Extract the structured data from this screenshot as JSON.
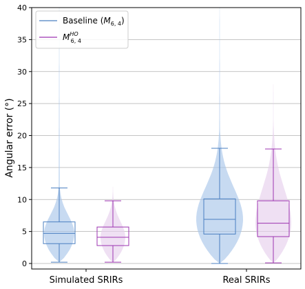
{
  "chart_data": {
    "type": "box-violin",
    "categories": [
      "Simulated SRIRs",
      "Real SRIRs"
    ],
    "ylabel": "Angular error (°)",
    "ylim": [
      0,
      40
    ],
    "yticks": [
      0,
      5,
      10,
      15,
      20,
      25,
      30,
      35,
      40
    ],
    "grid": "horizontal",
    "legend_position": "top-left",
    "series": [
      {
        "legend_main": "Baseline (",
        "legend_math": "M",
        "legend_sub": "6, 4",
        "legend_end": ")",
        "color": "#4a7fc1",
        "fill": "#a9c6ea",
        "boxes": [
          {
            "whisker_low": 0.2,
            "q1": 3.1,
            "median": 4.7,
            "q3": 6.5,
            "whisker_high": 11.8,
            "max": 40
          },
          {
            "whisker_low": 0.0,
            "q1": 4.6,
            "median": 6.9,
            "q3": 10.1,
            "whisker_high": 18.0,
            "max": 40
          }
        ]
      },
      {
        "legend_main": "",
        "legend_math": "M",
        "legend_sub": "6, 4",
        "legend_sup": "HO",
        "legend_end": "",
        "color": "#9c33b0",
        "fill": "#e6d0ec",
        "boxes": [
          {
            "whisker_low": 0.2,
            "q1": 2.8,
            "median": 4.1,
            "q3": 5.7,
            "whisker_high": 9.8,
            "max": 12
          },
          {
            "whisker_low": 0.1,
            "q1": 4.2,
            "median": 6.3,
            "q3": 9.8,
            "whisker_high": 17.9,
            "max": 28
          }
        ]
      }
    ]
  }
}
